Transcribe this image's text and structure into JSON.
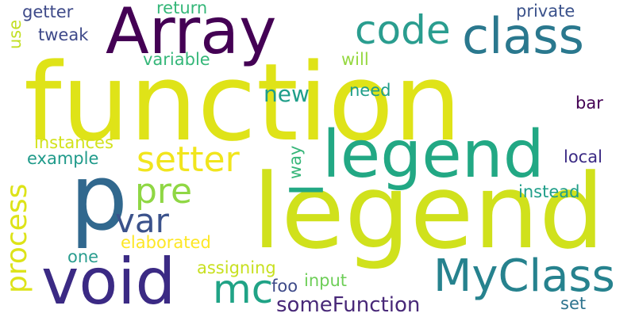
{
  "words": [
    {
      "text": "function",
      "color": "#dfe318"
    },
    {
      "text": "legend",
      "color": "#d0e11c"
    },
    {
      "text": "Array",
      "color": "#440154"
    },
    {
      "text": "_legend",
      "color": "#22a884"
    },
    {
      "text": "p",
      "color": "#31688e"
    },
    {
      "text": "void",
      "color": "#3b2a84"
    },
    {
      "text": "class",
      "color": "#2a788e"
    },
    {
      "text": "code",
      "color": "#2a9d8f"
    },
    {
      "text": "MyClass",
      "color": "#26828e"
    },
    {
      "text": "setter",
      "color": "#f1e51d"
    },
    {
      "text": "process",
      "color": "#dde318"
    },
    {
      "text": "pre",
      "color": "#8fd744"
    },
    {
      "text": "var",
      "color": "#3b528b"
    },
    {
      "text": "mc",
      "color": "#20a386"
    },
    {
      "text": "someFunction",
      "color": "#482878"
    },
    {
      "text": "new",
      "color": "#1f9e89"
    },
    {
      "text": "getter",
      "color": "#3e4a89"
    },
    {
      "text": "tweak",
      "color": "#3e4989"
    },
    {
      "text": "use",
      "color": "#c2df23"
    },
    {
      "text": "return",
      "color": "#35b779"
    },
    {
      "text": "variable",
      "color": "#35b779"
    },
    {
      "text": "private",
      "color": "#3b528b"
    },
    {
      "text": "will",
      "color": "#95d840"
    },
    {
      "text": "need",
      "color": "#1f9e89"
    },
    {
      "text": "bar",
      "color": "#440154"
    },
    {
      "text": "instances",
      "color": "#d2e21b"
    },
    {
      "text": "example",
      "color": "#1f9a8a"
    },
    {
      "text": "way",
      "color": "#37b679"
    },
    {
      "text": "local",
      "color": "#3b2a84"
    },
    {
      "text": "instead",
      "color": "#1f9e89"
    },
    {
      "text": "elaborated",
      "color": "#fde725"
    },
    {
      "text": "one",
      "color": "#2a9d8f"
    },
    {
      "text": "assigning",
      "color": "#c8e020"
    },
    {
      "text": "foo",
      "color": "#3e4a89"
    },
    {
      "text": "input",
      "color": "#6ece58"
    },
    {
      "text": "set",
      "color": "#2c738e"
    }
  ]
}
